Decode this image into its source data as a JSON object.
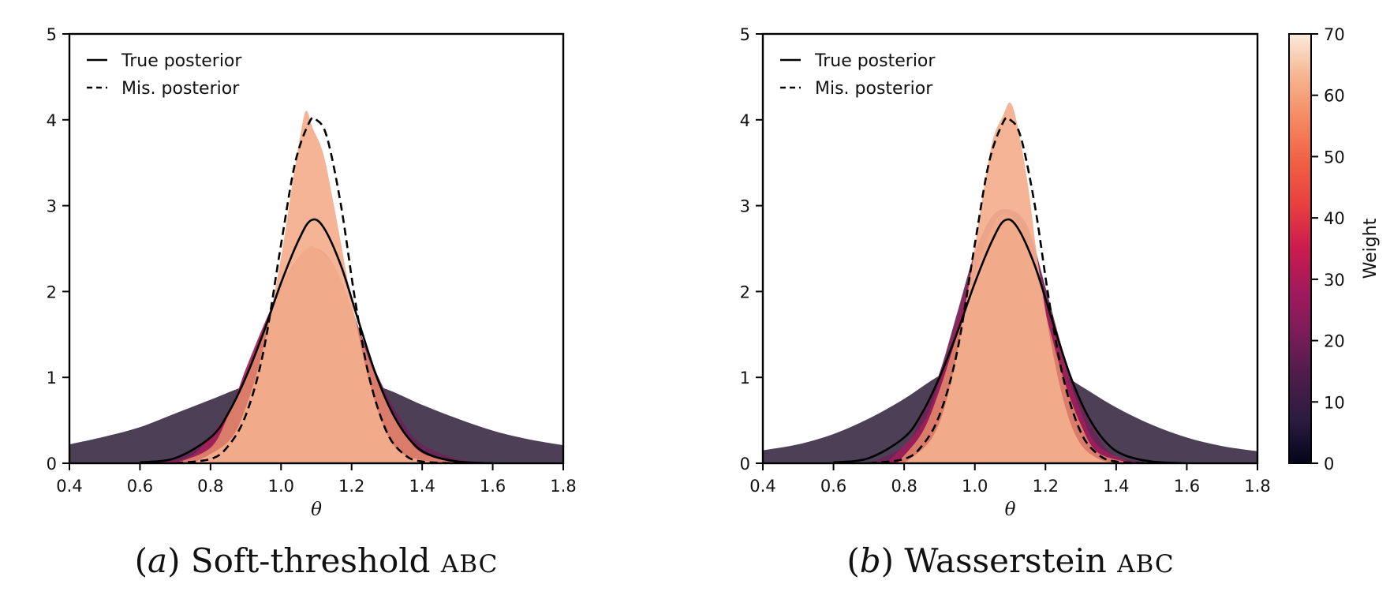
{
  "colorbar": {
    "label": "Weight",
    "range": [
      0,
      70
    ],
    "ticks": [
      0,
      10,
      20,
      30,
      40,
      50,
      60,
      70
    ],
    "colormap": [
      "#03051a",
      "#2b1b3f",
      "#4c1d4b",
      "#7a1c5a",
      "#a11a5b",
      "#cb1b4f",
      "#e83f3f",
      "#f06043",
      "#f58860",
      "#f6b48e",
      "#faebdd"
    ]
  },
  "chart_data": [
    {
      "type": "area",
      "panel": "a",
      "caption": {
        "letter": "a",
        "text": "Soft-threshold",
        "smallcaps": "ABC"
      },
      "xlabel": "θ",
      "ylabel": "",
      "xlim": [
        0.4,
        1.8
      ],
      "ylim": [
        0,
        5
      ],
      "xticks": [
        0.4,
        0.6,
        0.8,
        1.0,
        1.2,
        1.4,
        1.6,
        1.8
      ],
      "xtick_labels": [
        "0.4",
        "0.6",
        "0.8",
        "1.0",
        "1.2",
        "1.4",
        "1.6",
        "1.8"
      ],
      "yticks": [
        0,
        1,
        2,
        3,
        4,
        5
      ],
      "ytick_labels": [
        "0",
        "1",
        "2",
        "3",
        "4",
        "5"
      ],
      "legend": {
        "position": "top-left",
        "entries": [
          {
            "label": "True posterior",
            "style": "solid"
          },
          {
            "label": "Mis. posterior",
            "style": "dashed"
          }
        ]
      },
      "densities": [
        {
          "weight": 12,
          "color": "#3f3149",
          "x": [
            0.4,
            0.5,
            0.6,
            0.7,
            0.8,
            0.9,
            1.0,
            1.1,
            1.2,
            1.3,
            1.4,
            1.5,
            1.6,
            1.7,
            1.8
          ],
          "y": [
            0.22,
            0.31,
            0.42,
            0.58,
            0.74,
            0.9,
            1.0,
            1.02,
            0.98,
            0.86,
            0.68,
            0.52,
            0.38,
            0.28,
            0.21
          ]
        },
        {
          "weight": 22,
          "color": "#6b2556",
          "x": [
            0.6,
            0.7,
            0.8,
            0.9,
            0.95,
            1.0,
            1.05,
            1.1,
            1.15,
            1.2,
            1.25,
            1.3,
            1.35,
            1.4,
            1.5,
            1.6
          ],
          "y": [
            0.0,
            0.05,
            0.3,
            0.95,
            1.45,
            1.95,
            2.35,
            2.5,
            2.3,
            1.8,
            1.25,
            0.8,
            0.45,
            0.22,
            0.05,
            0.0
          ]
        },
        {
          "weight": 34,
          "color": "#a52058",
          "x": [
            0.65,
            0.75,
            0.85,
            0.9,
            0.95,
            1.0,
            1.05,
            1.1,
            1.15,
            1.2,
            1.25,
            1.3,
            1.35,
            1.4,
            1.5
          ],
          "y": [
            0.0,
            0.1,
            0.6,
            1.1,
            1.6,
            2.05,
            2.4,
            2.5,
            2.3,
            1.75,
            1.15,
            0.62,
            0.3,
            0.1,
            0.0
          ]
        },
        {
          "weight": 55,
          "color": "#e0836c",
          "x": [
            0.7,
            0.8,
            0.85,
            0.9,
            0.95,
            1.0,
            1.05,
            1.08,
            1.1,
            1.15,
            1.2,
            1.25,
            1.3,
            1.35,
            1.4,
            1.5
          ],
          "y": [
            0.0,
            0.18,
            0.55,
            1.0,
            1.5,
            2.0,
            2.4,
            2.52,
            2.5,
            2.3,
            1.8,
            1.2,
            0.7,
            0.35,
            0.12,
            0.0
          ]
        },
        {
          "weight": 63,
          "color": "#f3ae8d",
          "x": [
            0.75,
            0.85,
            0.9,
            0.95,
            1.0,
            1.03,
            1.05,
            1.07,
            1.09,
            1.12,
            1.15,
            1.2,
            1.25,
            1.3,
            1.35,
            1.45
          ],
          "y": [
            0.0,
            0.25,
            0.65,
            1.35,
            2.4,
            3.2,
            3.7,
            4.1,
            3.9,
            3.6,
            3.0,
            1.9,
            0.95,
            0.35,
            0.1,
            0.0
          ]
        }
      ],
      "lines": [
        {
          "name": "True posterior",
          "style": "solid",
          "x": [
            0.6,
            0.7,
            0.8,
            0.85,
            0.9,
            0.95,
            1.0,
            1.05,
            1.085,
            1.12,
            1.17,
            1.22,
            1.27,
            1.32,
            1.37,
            1.42,
            1.5,
            1.6
          ],
          "y": [
            0.01,
            0.06,
            0.3,
            0.58,
            1.0,
            1.52,
            2.1,
            2.6,
            2.83,
            2.75,
            2.3,
            1.65,
            1.02,
            0.55,
            0.25,
            0.1,
            0.02,
            0.0
          ]
        },
        {
          "name": "Mis. posterior",
          "style": "dashed",
          "x": [
            0.7,
            0.8,
            0.85,
            0.9,
            0.95,
            1.0,
            1.04,
            1.08,
            1.1,
            1.13,
            1.17,
            1.21,
            1.25,
            1.3,
            1.35,
            1.4,
            1.5
          ],
          "y": [
            0.0,
            0.05,
            0.2,
            0.56,
            1.3,
            2.55,
            3.5,
            3.97,
            4.0,
            3.8,
            3.0,
            1.9,
            1.0,
            0.36,
            0.1,
            0.02,
            0.0
          ]
        }
      ]
    },
    {
      "type": "area",
      "panel": "b",
      "caption": {
        "letter": "b",
        "text": "Wasserstein",
        "smallcaps": "ABC"
      },
      "xlabel": "θ",
      "ylabel": "",
      "xlim": [
        0.4,
        1.8
      ],
      "ylim": [
        0,
        5
      ],
      "xticks": [
        0.4,
        0.6,
        0.8,
        1.0,
        1.2,
        1.4,
        1.6,
        1.8
      ],
      "xtick_labels": [
        "0.4",
        "0.6",
        "0.8",
        "1.0",
        "1.2",
        "1.4",
        "1.6",
        "1.8"
      ],
      "yticks": [
        0,
        1,
        2,
        3,
        4,
        5
      ],
      "ytick_labels": [
        "0",
        "1",
        "2",
        "3",
        "4",
        "5"
      ],
      "legend": {
        "position": "top-left",
        "entries": [
          {
            "label": "True posterior",
            "style": "solid"
          },
          {
            "label": "Mis. posterior",
            "style": "dashed"
          }
        ]
      },
      "densities": [
        {
          "weight": 12,
          "color": "#3f3149",
          "x": [
            0.4,
            0.5,
            0.6,
            0.7,
            0.8,
            0.9,
            1.0,
            1.1,
            1.2,
            1.3,
            1.4,
            1.5,
            1.6,
            1.7,
            1.8
          ],
          "y": [
            0.15,
            0.22,
            0.34,
            0.52,
            0.75,
            1.02,
            1.2,
            1.25,
            1.15,
            0.9,
            0.65,
            0.45,
            0.3,
            0.2,
            0.14
          ]
        },
        {
          "weight": 22,
          "color": "#6b2556",
          "x": [
            0.7,
            0.8,
            0.85,
            0.9,
            0.95,
            1.0,
            1.05,
            1.1,
            1.15,
            1.2,
            1.25,
            1.3,
            1.35,
            1.4,
            1.5
          ],
          "y": [
            0.0,
            0.2,
            0.55,
            1.05,
            1.75,
            2.45,
            2.88,
            2.95,
            2.75,
            2.05,
            1.3,
            0.7,
            0.3,
            0.08,
            0.0
          ]
        },
        {
          "weight": 32,
          "color": "#9d1f58",
          "x": [
            0.75,
            0.85,
            0.9,
            0.95,
            1.0,
            1.05,
            1.1,
            1.15,
            1.2,
            1.25,
            1.3,
            1.35,
            1.45
          ],
          "y": [
            0.0,
            0.45,
            0.95,
            1.65,
            2.35,
            2.8,
            2.9,
            2.65,
            1.95,
            1.2,
            0.6,
            0.2,
            0.0
          ]
        },
        {
          "weight": 55,
          "color": "#e0836c",
          "x": [
            0.78,
            0.85,
            0.9,
            0.95,
            1.0,
            1.05,
            1.08,
            1.12,
            1.16,
            1.2,
            1.25,
            1.3,
            1.35,
            1.45
          ],
          "y": [
            0.0,
            0.35,
            0.85,
            1.5,
            2.2,
            2.75,
            2.9,
            2.8,
            2.4,
            1.75,
            1.0,
            0.45,
            0.12,
            0.0
          ]
        },
        {
          "weight": 63,
          "color": "#f3ae8d",
          "x": [
            0.8,
            0.88,
            0.93,
            0.98,
            1.02,
            1.05,
            1.08,
            1.1,
            1.12,
            1.15,
            1.18,
            1.22,
            1.26,
            1.3,
            1.35,
            1.4
          ],
          "y": [
            0.0,
            0.3,
            0.9,
            2.0,
            3.05,
            3.75,
            4.05,
            4.2,
            3.95,
            3.25,
            2.3,
            1.3,
            0.6,
            0.22,
            0.05,
            0.0
          ]
        }
      ],
      "lines": [
        {
          "name": "True posterior",
          "style": "solid",
          "x": [
            0.6,
            0.7,
            0.8,
            0.85,
            0.9,
            0.95,
            1.0,
            1.05,
            1.085,
            1.12,
            1.17,
            1.22,
            1.27,
            1.32,
            1.37,
            1.42,
            1.5,
            1.6
          ],
          "y": [
            0.01,
            0.06,
            0.3,
            0.58,
            1.0,
            1.52,
            2.1,
            2.6,
            2.83,
            2.75,
            2.3,
            1.65,
            1.02,
            0.55,
            0.25,
            0.1,
            0.02,
            0.0
          ]
        },
        {
          "name": "Mis. posterior",
          "style": "dashed",
          "x": [
            0.7,
            0.8,
            0.85,
            0.9,
            0.95,
            1.0,
            1.04,
            1.08,
            1.1,
            1.13,
            1.17,
            1.21,
            1.25,
            1.3,
            1.35,
            1.4,
            1.5
          ],
          "y": [
            0.0,
            0.05,
            0.2,
            0.56,
            1.3,
            2.55,
            3.5,
            3.97,
            4.0,
            3.8,
            3.0,
            1.9,
            1.0,
            0.36,
            0.1,
            0.02,
            0.0
          ]
        }
      ]
    }
  ]
}
